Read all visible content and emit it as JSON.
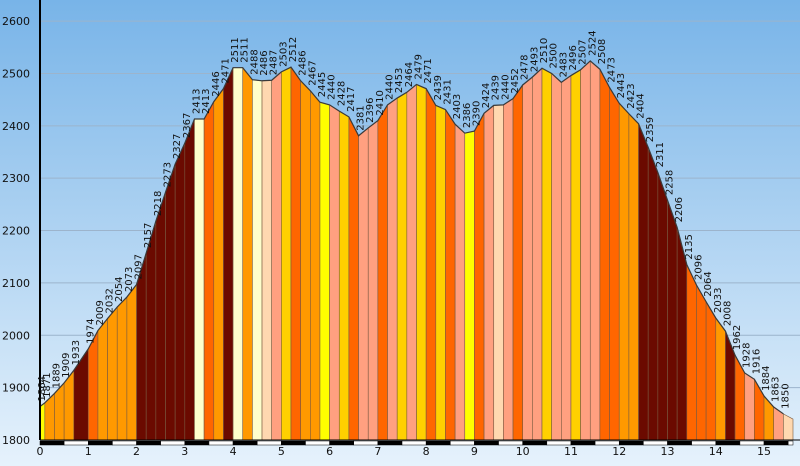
{
  "chart_data": {
    "type": "area",
    "x_ticks": [
      "0",
      "1",
      "2",
      "3",
      "4",
      "5",
      "6",
      "7",
      "8",
      "9",
      "10",
      "11",
      "12",
      "13",
      "14",
      "15"
    ],
    "y_ticks": [
      "1800",
      "1900",
      "2000",
      "2100",
      "2200",
      "2300",
      "2400",
      "2500",
      "2600"
    ],
    "ylim": [
      1800,
      2625
    ],
    "xlim": [
      0,
      15.6
    ],
    "grid": "horizontal",
    "background": {
      "top": "#78b4e8",
      "bottom": "#e6f2fc"
    },
    "palette": [
      "#ffff00",
      "#ffd000",
      "#ff9900",
      "#ff6600",
      "#ffa080",
      "#ffd8b0",
      "#ffffcc",
      "#6b0a00"
    ],
    "points": [
      {
        "x": 0.0,
        "y": 1864,
        "label": "1864"
      },
      {
        "x": 0.1,
        "y": 1871,
        "label": "1871"
      },
      {
        "x": 0.3,
        "y": 1889,
        "label": "1889"
      },
      {
        "x": 0.5,
        "y": 1909,
        "label": "1909"
      },
      {
        "x": 0.7,
        "y": 1933,
        "label": "1933"
      },
      {
        "x": 1.0,
        "y": 1974,
        "label": "1974"
      },
      {
        "x": 1.2,
        "y": 2009,
        "label": "2009"
      },
      {
        "x": 1.4,
        "y": 2032,
        "label": "2032"
      },
      {
        "x": 1.6,
        "y": 2054,
        "label": "2054"
      },
      {
        "x": 1.8,
        "y": 2073,
        "label": "2073"
      },
      {
        "x": 2.0,
        "y": 2097,
        "label": "2097"
      },
      {
        "x": 2.2,
        "y": 2157,
        "label": "2157"
      },
      {
        "x": 2.4,
        "y": 2218,
        "label": "2218"
      },
      {
        "x": 2.6,
        "y": 2273,
        "label": "2273"
      },
      {
        "x": 2.8,
        "y": 2327,
        "label": "2327"
      },
      {
        "x": 3.0,
        "y": 2367,
        "label": "2367"
      },
      {
        "x": 3.2,
        "y": 2413,
        "label": "2413"
      },
      {
        "x": 3.4,
        "y": 2413,
        "label": "2413"
      },
      {
        "x": 3.6,
        "y": 2446,
        "label": "2446"
      },
      {
        "x": 3.8,
        "y": 2471,
        "label": "2471"
      },
      {
        "x": 4.0,
        "y": 2511,
        "label": "2511"
      },
      {
        "x": 4.2,
        "y": 2511,
        "label": "2511"
      },
      {
        "x": 4.4,
        "y": 2488,
        "label": "2488"
      },
      {
        "x": 4.6,
        "y": 2486,
        "label": "2486"
      },
      {
        "x": 4.8,
        "y": 2487,
        "label": "2487"
      },
      {
        "x": 5.0,
        "y": 2503,
        "label": "2503"
      },
      {
        "x": 5.2,
        "y": 2512,
        "label": "2512"
      },
      {
        "x": 5.4,
        "y": 2486,
        "label": "2486"
      },
      {
        "x": 5.6,
        "y": 2467,
        "label": "2467"
      },
      {
        "x": 5.8,
        "y": 2445,
        "label": "2445"
      },
      {
        "x": 6.0,
        "y": 2440,
        "label": "2440"
      },
      {
        "x": 6.2,
        "y": 2428,
        "label": "2428"
      },
      {
        "x": 6.4,
        "y": 2417,
        "label": "2417"
      },
      {
        "x": 6.6,
        "y": 2381,
        "label": "2381"
      },
      {
        "x": 6.8,
        "y": 2396,
        "label": "2396"
      },
      {
        "x": 7.0,
        "y": 2410,
        "label": "2410"
      },
      {
        "x": 7.2,
        "y": 2440,
        "label": "2440"
      },
      {
        "x": 7.4,
        "y": 2453,
        "label": "2453"
      },
      {
        "x": 7.6,
        "y": 2464,
        "label": "2464"
      },
      {
        "x": 7.8,
        "y": 2479,
        "label": "2479"
      },
      {
        "x": 8.0,
        "y": 2471,
        "label": "2471"
      },
      {
        "x": 8.2,
        "y": 2439,
        "label": "2439"
      },
      {
        "x": 8.4,
        "y": 2431,
        "label": "2431"
      },
      {
        "x": 8.6,
        "y": 2403,
        "label": "2403"
      },
      {
        "x": 8.8,
        "y": 2386,
        "label": "2386"
      },
      {
        "x": 9.0,
        "y": 2390,
        "label": "2390"
      },
      {
        "x": 9.2,
        "y": 2424,
        "label": "2424"
      },
      {
        "x": 9.4,
        "y": 2439,
        "label": "2439"
      },
      {
        "x": 9.6,
        "y": 2440,
        "label": "2440"
      },
      {
        "x": 9.8,
        "y": 2452,
        "label": "2452"
      },
      {
        "x": 10.0,
        "y": 2478,
        "label": "2478"
      },
      {
        "x": 10.2,
        "y": 2493,
        "label": "2493"
      },
      {
        "x": 10.4,
        "y": 2510,
        "label": "2510"
      },
      {
        "x": 10.6,
        "y": 2500,
        "label": "2500"
      },
      {
        "x": 10.8,
        "y": 2483,
        "label": "2483"
      },
      {
        "x": 11.0,
        "y": 2496,
        "label": "2496"
      },
      {
        "x": 11.2,
        "y": 2507,
        "label": "2507"
      },
      {
        "x": 11.4,
        "y": 2524,
        "label": "2524"
      },
      {
        "x": 11.6,
        "y": 2508,
        "label": "2508"
      },
      {
        "x": 11.8,
        "y": 2473,
        "label": "2473"
      },
      {
        "x": 12.0,
        "y": 2443,
        "label": "2443"
      },
      {
        "x": 12.2,
        "y": 2423,
        "label": "2423"
      },
      {
        "x": 12.4,
        "y": 2404,
        "label": "2404"
      },
      {
        "x": 12.6,
        "y": 2359,
        "label": "2359"
      },
      {
        "x": 12.8,
        "y": 2311,
        "label": "2311"
      },
      {
        "x": 13.0,
        "y": 2258,
        "label": "2258"
      },
      {
        "x": 13.2,
        "y": 2206,
        "label": "2206"
      },
      {
        "x": 13.4,
        "y": 2135,
        "label": "2135"
      },
      {
        "x": 13.6,
        "y": 2096,
        "label": "2096"
      },
      {
        "x": 13.8,
        "y": 2064,
        "label": "2064"
      },
      {
        "x": 14.0,
        "y": 2033,
        "label": "2033"
      },
      {
        "x": 14.2,
        "y": 2008,
        "label": "2008"
      },
      {
        "x": 14.4,
        "y": 1962,
        "label": "1962"
      },
      {
        "x": 14.6,
        "y": 1928,
        "label": "1928"
      },
      {
        "x": 14.8,
        "y": 1916,
        "label": "1916"
      },
      {
        "x": 15.0,
        "y": 1884,
        "label": "1884"
      },
      {
        "x": 15.2,
        "y": 1863,
        "label": "1863"
      },
      {
        "x": 15.4,
        "y": 1850,
        "label": "1850"
      }
    ]
  }
}
